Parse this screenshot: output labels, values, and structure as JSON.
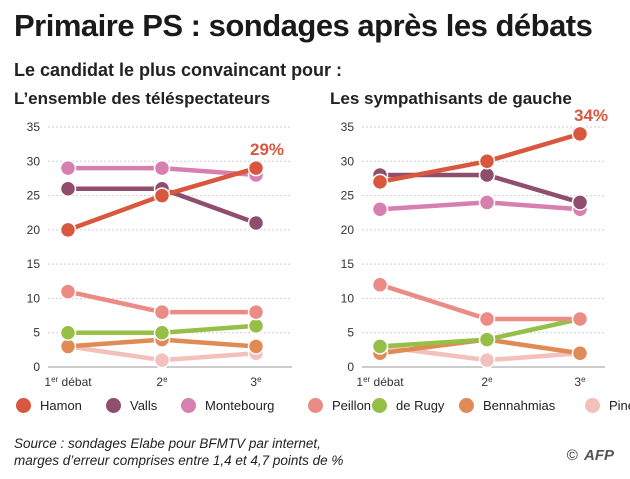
{
  "title": "Primaire PS : sondages après les débats",
  "subtitle": "Le candidat le plus convaincant pour :",
  "source_line1": "Source : sondages Elabe pour BFMTV par internet,",
  "source_line2": "marges d’erreur comprises entre 1,4 et 4,7 points de %",
  "credit": {
    "copyright": "©",
    "agency": "AFP"
  },
  "legend": [
    {
      "name": "Hamon",
      "color": "#d9573f"
    },
    {
      "name": "Valls",
      "color": "#8f4e6e"
    },
    {
      "name": "Montebourg",
      "color": "#d77fae"
    },
    {
      "name": "Peillon",
      "color": "#ec8a86"
    },
    {
      "name": "de Rugy",
      "color": "#95bf47"
    },
    {
      "name": "Bennahmias",
      "color": "#e08a55"
    },
    {
      "name": "Pinel",
      "color": "#f3c0bb"
    }
  ],
  "chart_data": [
    {
      "type": "line",
      "title": "L’ensemble des téléspectateurs",
      "categories": [
        "1er débat",
        "2e",
        "3e"
      ],
      "category_labels": [
        {
          "main": "1",
          "sup": "er",
          "rest": " débat"
        },
        {
          "main": "2",
          "sup": "e",
          "rest": ""
        },
        {
          "main": "3",
          "sup": "e",
          "rest": ""
        }
      ],
      "ylim": [
        0,
        35
      ],
      "yticks": [
        0,
        5,
        10,
        15,
        20,
        25,
        30,
        35
      ],
      "grid": true,
      "annotation": {
        "text": "29%",
        "series": "Hamon",
        "index": 2
      },
      "series": [
        {
          "name": "Pinel",
          "values": [
            3,
            1,
            2
          ]
        },
        {
          "name": "Bennahmias",
          "values": [
            3,
            4,
            3
          ]
        },
        {
          "name": "de Rugy",
          "values": [
            5,
            5,
            6
          ]
        },
        {
          "name": "Peillon",
          "values": [
            11,
            8,
            8
          ]
        },
        {
          "name": "Montebourg",
          "values": [
            29,
            29,
            28
          ]
        },
        {
          "name": "Valls",
          "values": [
            26,
            26,
            21
          ]
        },
        {
          "name": "Hamon",
          "values": [
            20,
            25,
            29
          ]
        }
      ]
    },
    {
      "type": "line",
      "title": "Les sympathisants de gauche",
      "categories": [
        "1er débat",
        "2e",
        "3e"
      ],
      "category_labels": [
        {
          "main": "1",
          "sup": "er",
          "rest": " débat"
        },
        {
          "main": "2",
          "sup": "e",
          "rest": ""
        },
        {
          "main": "3",
          "sup": "e",
          "rest": ""
        }
      ],
      "ylim": [
        0,
        35
      ],
      "yticks": [
        0,
        5,
        10,
        15,
        20,
        25,
        30,
        35
      ],
      "grid": true,
      "annotation": {
        "text": "34%",
        "series": "Hamon",
        "index": 2
      },
      "series": [
        {
          "name": "Pinel",
          "values": [
            3,
            1,
            2
          ]
        },
        {
          "name": "Bennahmias",
          "values": [
            2,
            4,
            2
          ]
        },
        {
          "name": "de Rugy",
          "values": [
            3,
            4,
            7
          ]
        },
        {
          "name": "Peillon",
          "values": [
            12,
            7,
            7
          ]
        },
        {
          "name": "Montebourg",
          "values": [
            23,
            24,
            23
          ]
        },
        {
          "name": "Valls",
          "values": [
            28,
            28,
            24
          ]
        },
        {
          "name": "Hamon",
          "values": [
            27,
            30,
            34
          ]
        }
      ]
    }
  ]
}
